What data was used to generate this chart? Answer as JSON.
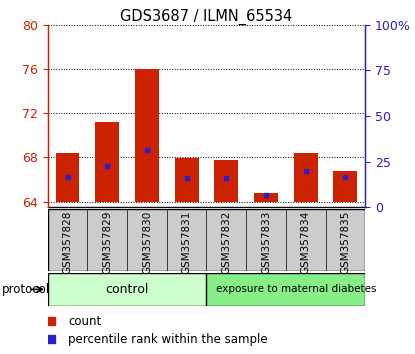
{
  "title": "GDS3687 / ILMN_65534",
  "samples": [
    "GSM357828",
    "GSM357829",
    "GSM357830",
    "GSM357831",
    "GSM357832",
    "GSM357833",
    "GSM357834",
    "GSM357835"
  ],
  "bar_bottoms": [
    64,
    64,
    64,
    64,
    64,
    64,
    64,
    64
  ],
  "bar_tops": [
    68.4,
    71.2,
    76.0,
    67.9,
    67.8,
    64.8,
    68.4,
    66.8
  ],
  "blue_values": [
    66.2,
    67.2,
    68.7,
    66.1,
    66.1,
    64.6,
    66.8,
    66.2
  ],
  "ylim_left": [
    63.5,
    80
  ],
  "ylim_right": [
    0,
    100
  ],
  "yticks_left": [
    64,
    68,
    72,
    76,
    80
  ],
  "yticks_right": [
    0,
    25,
    50,
    75,
    100
  ],
  "ytick_labels_right": [
    "0",
    "25",
    "50",
    "75",
    "100%"
  ],
  "bar_color": "#cc2200",
  "blue_color": "#2222cc",
  "bar_width": 0.6,
  "control_color": "#ccffcc",
  "diabetes_color": "#88ee88",
  "protocol_label": "protocol",
  "left_tick_color": "#cc2200",
  "right_tick_color": "#2222cc",
  "xtick_bg_color": "#cccccc",
  "legend_items": [
    {
      "color": "#cc2200",
      "label": "count"
    },
    {
      "color": "#2222cc",
      "label": "percentile rank within the sample"
    }
  ]
}
